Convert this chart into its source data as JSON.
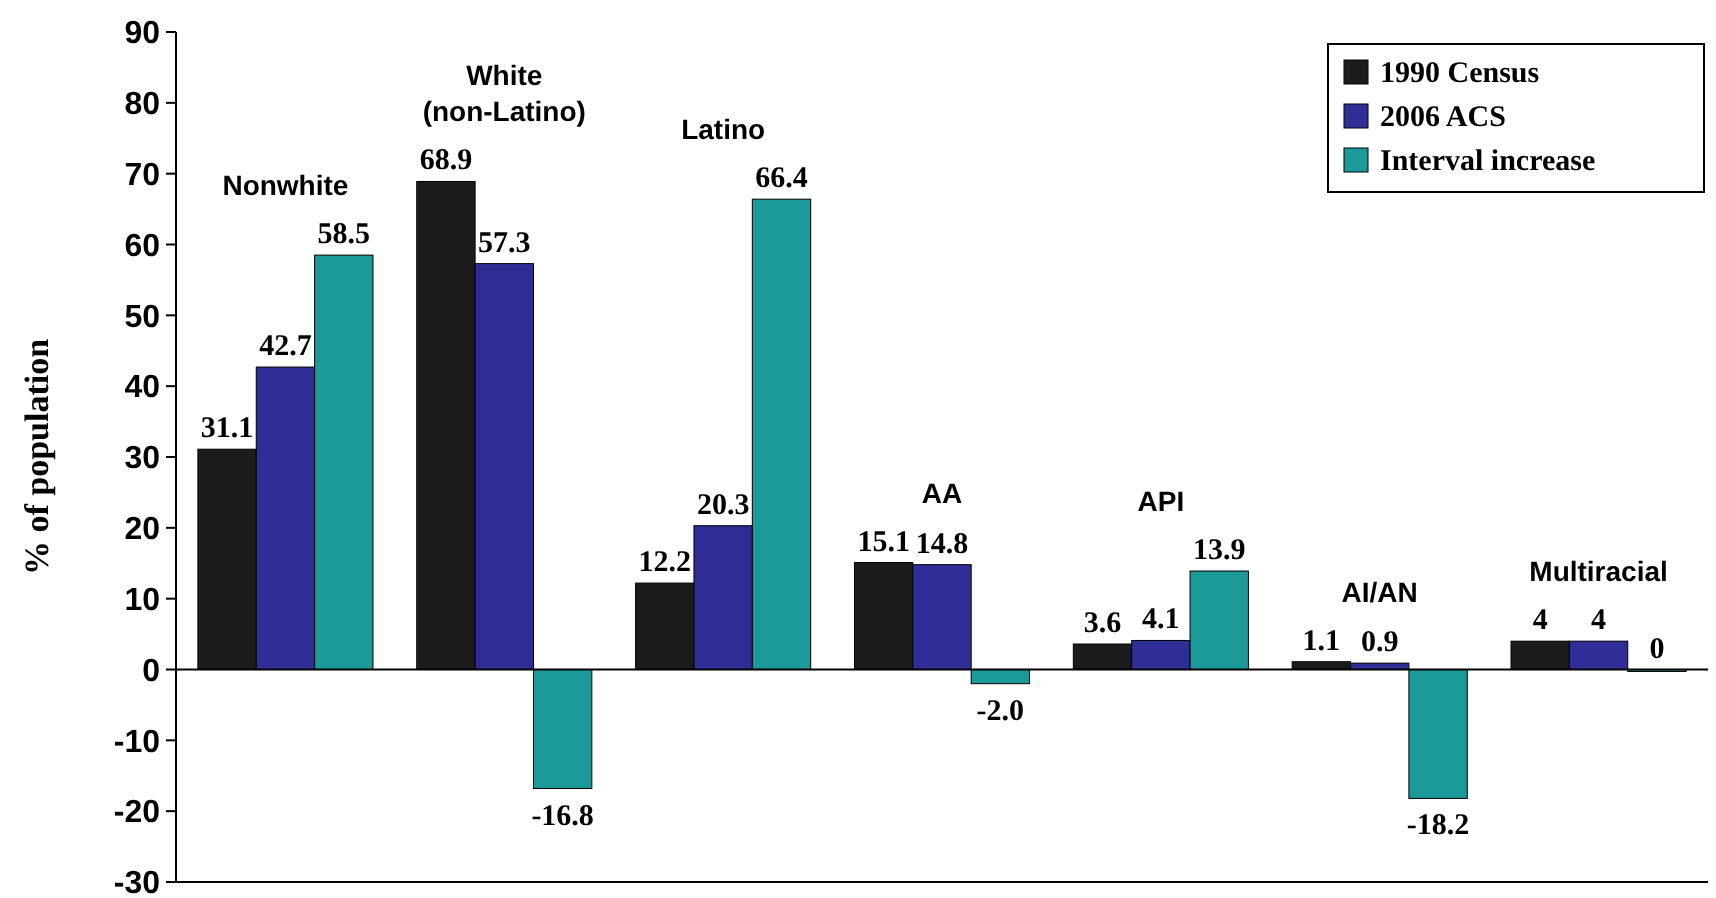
{
  "chart_data": {
    "type": "bar",
    "ylabel": "% of population",
    "categories": [
      "Nonwhite",
      "White\n(non-Latino)",
      "Latino",
      "AA",
      "API",
      "AI/AN",
      "Multiracial"
    ],
    "series": [
      {
        "name": "1990 Census",
        "color": "#1c1c1c",
        "values": [
          31.1,
          68.9,
          12.2,
          15.1,
          3.6,
          1.1,
          4
        ],
        "value_labels": [
          "31.1",
          "68.9",
          "12.2",
          "15.1",
          "3.6",
          "1.1",
          "4"
        ]
      },
      {
        "name": "2006 ACS",
        "color": "#2e2e96",
        "values": [
          42.7,
          57.3,
          20.3,
          14.8,
          4.1,
          0.9,
          4
        ],
        "value_labels": [
          "42.7",
          "57.3",
          "20.3",
          "14.8",
          "4.1",
          "0.9",
          "4"
        ]
      },
      {
        "name": "Interval increase",
        "color": "#1c9a9a",
        "values": [
          58.5,
          -16.8,
          66.4,
          -2.0,
          13.9,
          -18.2,
          0
        ],
        "value_labels": [
          "58.5",
          "-16.8",
          "66.4",
          "-2.0",
          "13.9",
          "-18.2",
          "0"
        ]
      }
    ],
    "ylim": [
      -30,
      90
    ],
    "yticks": [
      -30,
      -20,
      -10,
      0,
      10,
      20,
      30,
      40,
      50,
      60,
      70,
      80,
      90
    ],
    "legend": "top right"
  }
}
